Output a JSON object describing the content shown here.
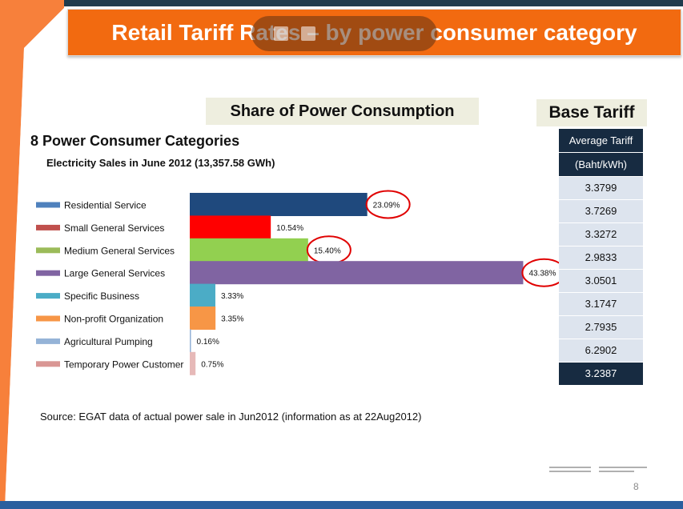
{
  "title": "Retail Tariff Rates – by power consumer category",
  "share_heading": "Share of Power Consumption",
  "base_tariff_heading": "Base Tariff",
  "categories_heading": "8 Power Consumer Categories",
  "subheading": "Electricity Sales in June 2012 (13,357.58  GWh)",
  "table": {
    "header1": "Average Tariff",
    "header2": "(Baht/kWh)",
    "rows": [
      "3.3799",
      "3.7269",
      "3.3272",
      "2.9833",
      "3.0501",
      "3.1747",
      "2.7935",
      "6.2902"
    ],
    "average": "3.2387"
  },
  "source": "Source: EGAT data of actual power sale in Jun2012 (information as at 22Aug2012)",
  "page_number": "8",
  "chart_data": {
    "type": "bar",
    "orientation": "horizontal",
    "title": "",
    "xlabel": "",
    "ylabel": "",
    "legend": "left",
    "grid": false,
    "categories": [
      "Residential Service",
      "Small General Services",
      "Medium General Services",
      "Large General Services",
      "Specific Business",
      "Non-profit Organization",
      "Agricultural Pumping",
      "Temporary Power Customer"
    ],
    "values": [
      23.09,
      10.54,
      15.4,
      43.38,
      3.33,
      3.35,
      0.16,
      0.75
    ],
    "labels": [
      "23.09%",
      "10.54%",
      "15.40%",
      "43.38%",
      "3.33%",
      "3.35%",
      "0.16%",
      "0.75%"
    ],
    "colors": [
      "#1f497d",
      "#ff0000",
      "#92d050",
      "#8064a2",
      "#4bacc6",
      "#f79646",
      "#95b3d7",
      "#e6b9b8"
    ],
    "legend_colors": [
      "#4f81bd",
      "#c0504d",
      "#9bbb59",
      "#8064a2",
      "#4bacc6",
      "#f79646",
      "#95b3d7",
      "#d99694"
    ],
    "circled": [
      true,
      false,
      true,
      true,
      false,
      false,
      false,
      false
    ]
  }
}
